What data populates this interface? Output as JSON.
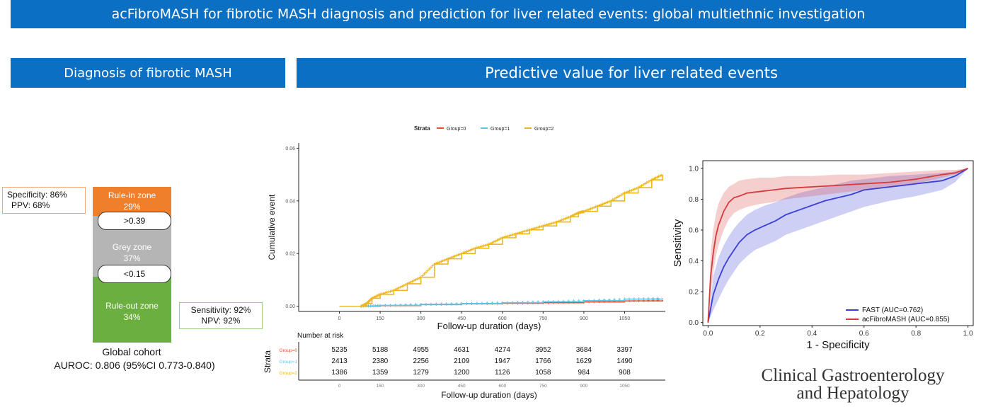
{
  "title": "acFibroMASH for fibrotic MASH diagnosis and prediction for liver related events: global  multiethnic investigation",
  "left_header": "Diagnosis of fibrotic MASH",
  "right_header": "Predictive value for liver related events",
  "diagnosis": {
    "rule_in": {
      "label": "Rule-in zone",
      "percent": "29%",
      "color": "#f07f2c"
    },
    "grey": {
      "label": "Grey zone",
      "percent": "37%",
      "color": "#b5b5b5"
    },
    "rule_out": {
      "label": "Rule-out zone",
      "percent": "34%",
      "color": "#6aaf3f"
    },
    "upper_cutoff": ">0.39",
    "lower_cutoff": "<0.15",
    "specificity": "Specificity: 86%",
    "ppv": "PPV: 68%",
    "sensitivity": "Sensitivity: 92%",
    "npv": "NPV: 92%",
    "cohort": "Global cohort",
    "auroc": "AUROC:  0.806 (95%CI 0.773-0.840)"
  },
  "journal": {
    "line1": "Clinical Gastroenterology",
    "line2": "and Hepatology"
  },
  "chart_data": [
    {
      "type": "line",
      "subtype": "cumulative-incidence",
      "legend_title": "Strata",
      "legend_position": "top",
      "xlabel": "Follow-up duration (days)",
      "ylabel": "Cumulative event",
      "xlim": [
        -150,
        1200
      ],
      "ylim": [
        -0.002,
        0.062
      ],
      "xticks": [
        0,
        150,
        300,
        450,
        600,
        750,
        900,
        1050
      ],
      "yticks": [
        0,
        0.02,
        0.04,
        0.06
      ],
      "ytick_labels": [
        "0.00",
        "0.02",
        "0.04",
        "0.06"
      ],
      "grid": false,
      "series": [
        {
          "name": "Group=0",
          "color": "#e8502a",
          "x": [
            80,
            150,
            300,
            450,
            600,
            750,
            900,
            1050,
            1190
          ],
          "y": [
            0.0,
            0.0002,
            0.0006,
            0.0009,
            0.0011,
            0.0013,
            0.0016,
            0.002,
            0.0023
          ]
        },
        {
          "name": "Group=1",
          "color": "#5fc7ea",
          "x": [
            80,
            150,
            300,
            450,
            600,
            750,
            900,
            1050,
            1190
          ],
          "y": [
            0.0,
            0.0003,
            0.0007,
            0.001,
            0.0013,
            0.0017,
            0.0021,
            0.0027,
            0.003
          ]
        },
        {
          "name": "Group=2",
          "color": "#eeb71c",
          "x": [
            80,
            100,
            120,
            150,
            200,
            250,
            300,
            350,
            400,
            450,
            500,
            550,
            600,
            650,
            700,
            750,
            800,
            850,
            880,
            900,
            950,
            1000,
            1050,
            1100,
            1150,
            1190
          ],
          "y": [
            0.0,
            0.001,
            0.003,
            0.0045,
            0.006,
            0.0085,
            0.011,
            0.016,
            0.018,
            0.02,
            0.022,
            0.0235,
            0.026,
            0.0275,
            0.029,
            0.0305,
            0.032,
            0.034,
            0.0355,
            0.036,
            0.038,
            0.04,
            0.043,
            0.045,
            0.048,
            0.05
          ]
        }
      ]
    },
    {
      "type": "table",
      "title": "Number at risk",
      "row_axis_label": "Strata",
      "xlabel": "Follow-up duration (days)",
      "columns": [
        0,
        150,
        300,
        450,
        600,
        750,
        900,
        1050
      ],
      "rows": [
        {
          "name": "Group=0",
          "color": "#e8502a",
          "values": [
            5235,
            5188,
            4955,
            4631,
            4274,
            3952,
            3684,
            3397
          ]
        },
        {
          "name": "Group=1",
          "color": "#5fc7ea",
          "values": [
            2413,
            2380,
            2256,
            2109,
            1947,
            1766,
            1629,
            1490
          ]
        },
        {
          "name": "Group=2",
          "color": "#eeb71c",
          "values": [
            1386,
            1359,
            1279,
            1200,
            1126,
            1058,
            984,
            908
          ]
        }
      ]
    },
    {
      "type": "line",
      "subtype": "roc",
      "xlabel": "1 - Specificity",
      "ylabel": "Sensitivity",
      "xlim": [
        -0.02,
        1.02
      ],
      "ylim": [
        -0.02,
        1.05
      ],
      "xticks": [
        0.0,
        0.2,
        0.4,
        0.6,
        0.8,
        1.0
      ],
      "yticks": [
        0.0,
        0.2,
        0.4,
        0.6,
        0.8,
        1.0
      ],
      "tick_labels": [
        "0.0",
        "0.2",
        "0.4",
        "0.6",
        "0.8",
        "1.0"
      ],
      "grid": false,
      "legend_position": "bottom-right",
      "series": [
        {
          "name": "FAST (AUC=0.762)",
          "color": "#3b3fd6",
          "x": [
            0.0,
            0.02,
            0.04,
            0.06,
            0.08,
            0.1,
            0.12,
            0.15,
            0.18,
            0.22,
            0.26,
            0.3,
            0.35,
            0.4,
            0.45,
            0.5,
            0.55,
            0.6,
            0.7,
            0.8,
            0.9,
            0.95,
            1.0
          ],
          "y": [
            0.0,
            0.18,
            0.28,
            0.36,
            0.42,
            0.47,
            0.52,
            0.57,
            0.6,
            0.63,
            0.66,
            0.7,
            0.73,
            0.76,
            0.79,
            0.81,
            0.83,
            0.86,
            0.88,
            0.9,
            0.92,
            0.95,
            1.0
          ],
          "ci_lower": [
            0.0,
            0.08,
            0.15,
            0.22,
            0.28,
            0.33,
            0.38,
            0.43,
            0.47,
            0.5,
            0.53,
            0.57,
            0.6,
            0.63,
            0.66,
            0.69,
            0.72,
            0.75,
            0.79,
            0.82,
            0.86,
            0.91,
            1.0
          ],
          "ci_upper": [
            0.0,
            0.3,
            0.42,
            0.5,
            0.56,
            0.61,
            0.65,
            0.7,
            0.73,
            0.76,
            0.78,
            0.81,
            0.84,
            0.86,
            0.88,
            0.9,
            0.92,
            0.93,
            0.95,
            0.96,
            0.97,
            0.98,
            1.0
          ]
        },
        {
          "name": "acFibroMASH (AUC=0.855)",
          "color": "#d63a3a",
          "x": [
            0.0,
            0.01,
            0.02,
            0.03,
            0.04,
            0.06,
            0.08,
            0.1,
            0.12,
            0.15,
            0.2,
            0.25,
            0.3,
            0.4,
            0.5,
            0.6,
            0.7,
            0.8,
            0.9,
            0.95,
            1.0
          ],
          "y": [
            0.0,
            0.3,
            0.45,
            0.56,
            0.63,
            0.72,
            0.78,
            0.81,
            0.82,
            0.84,
            0.85,
            0.86,
            0.87,
            0.88,
            0.89,
            0.9,
            0.91,
            0.93,
            0.96,
            0.97,
            1.0
          ],
          "ci_lower": [
            0.0,
            0.18,
            0.32,
            0.43,
            0.5,
            0.6,
            0.67,
            0.71,
            0.73,
            0.75,
            0.77,
            0.78,
            0.8,
            0.82,
            0.84,
            0.86,
            0.88,
            0.9,
            0.94,
            0.96,
            1.0
          ],
          "ci_upper": [
            0.0,
            0.45,
            0.6,
            0.7,
            0.77,
            0.84,
            0.88,
            0.9,
            0.92,
            0.93,
            0.94,
            0.94,
            0.95,
            0.95,
            0.96,
            0.96,
            0.97,
            0.98,
            0.99,
            0.99,
            1.0
          ]
        }
      ]
    }
  ]
}
